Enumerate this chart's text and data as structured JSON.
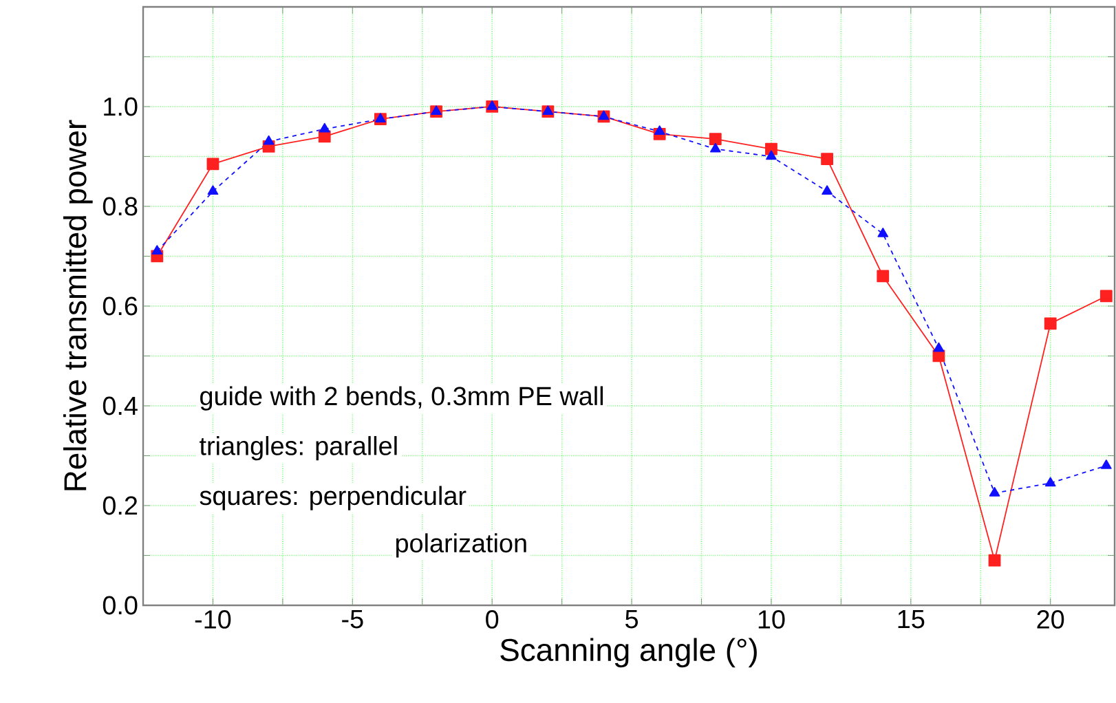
{
  "chart_data": {
    "type": "line",
    "xlabel": "Scanning angle (°)",
    "ylabel": "Relative transmitted power",
    "x": [
      -12,
      -10,
      -8,
      -6,
      -4,
      -2,
      0,
      2,
      4,
      6,
      8,
      10,
      12,
      14,
      16,
      18,
      20,
      22
    ],
    "series": [
      {
        "color": "#ff2020",
        "marker": "square",
        "line_style": "solid",
        "values": [
          0.7,
          0.885,
          0.92,
          0.94,
          0.975,
          0.99,
          1.0,
          0.99,
          0.98,
          0.945,
          0.935,
          0.915,
          0.895,
          0.66,
          0.5,
          0.09,
          0.565,
          0.62
        ]
      },
      {
        "color": "#1010ff",
        "marker": "triangle",
        "line_style": "dashed",
        "values": [
          0.71,
          0.83,
          0.93,
          0.955,
          0.975,
          0.99,
          1.0,
          0.99,
          0.98,
          0.95,
          0.915,
          0.9,
          0.83,
          0.745,
          0.515,
          0.225,
          0.245,
          0.28
        ]
      }
    ],
    "xlim": [
      -12.5,
      22.3
    ],
    "ylim": [
      0,
      1.2
    ],
    "xticks": [
      -10,
      {
        "value": -7.5,
        "label": null
      },
      -5,
      {
        "value": -2.5,
        "label": null
      },
      0,
      {
        "value": 2.5,
        "label": null
      },
      5,
      {
        "value": 7.5,
        "label": null
      },
      10,
      {
        "value": 12.5,
        "label": null
      },
      15,
      {
        "value": 17.5,
        "label": null
      },
      20
    ],
    "yticks": [
      {
        "value": 0,
        "label": "0.0"
      },
      {
        "value": 0.1,
        "label": null
      },
      {
        "value": 0.2,
        "label": "0.2"
      },
      {
        "value": 0.3,
        "label": null
      },
      {
        "value": 0.4,
        "label": "0.4"
      },
      {
        "value": 0.5,
        "label": null
      },
      {
        "value": 0.6,
        "label": "0.6"
      },
      {
        "value": 0.7,
        "label": null
      },
      {
        "value": 0.8,
        "label": "0.8"
      },
      {
        "value": 0.9,
        "label": null
      },
      {
        "value": 1.0,
        "label": "1.0"
      },
      {
        "value": 1.1,
        "label": null
      }
    ],
    "grid": true,
    "annotations": [
      "guide with 2 bends, 0.3mm PE wall",
      "triangles: parallel",
      "squares:  perpendicular",
      "polarization"
    ]
  }
}
